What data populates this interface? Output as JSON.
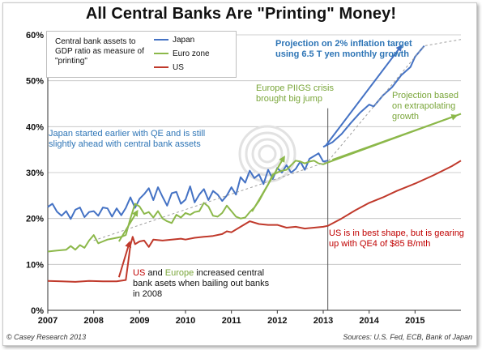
{
  "title": "All Central Banks Are \"Printing\" Money!",
  "legend_caption": "Central bank assets to GDP ratio as measure of \"printing\"",
  "annotations": {
    "japan_early": "Japan started earlier with QE and is still slightly ahead with central bank assets",
    "piigs": "Europe PIIGS crisis brought big jump",
    "projection_inflation": "Projection on 2% inflation target using 6.5 T yen monthly growth",
    "projection_extrapolating": "Projection based on extrapolating growth",
    "us_shape": "US is in best shape, but is  gearing up with QE4 of $85 B/mth",
    "bailout_us": "US",
    "bailout_and": " and ",
    "bailout_europe": "Europe",
    "bailout_rest": " increased central bank asets when bailing out banks in 2008"
  },
  "footer": {
    "left": "© Casey Research 2013",
    "right": "Sources:  U.S. Fed, ECB, Bank of Japan"
  },
  "colors": {
    "japan": "#4472c4",
    "euro": "#8cb84a",
    "us": "#c0392b",
    "japan_text": "#2e75b6",
    "euro_text": "#7aa63a",
    "us_text": "#c00000",
    "axis": "#333333",
    "grid": "#bfbfbf",
    "trend": "#9e9e9e"
  },
  "chart_data": {
    "type": "line",
    "xlim": [
      2007,
      2016
    ],
    "ylim": [
      0,
      60
    ],
    "x_ticks": [
      "2007",
      "2008",
      "2009",
      "2010",
      "2011",
      "2012",
      "2013",
      "2014",
      "2015"
    ],
    "y_ticks": [
      "0%",
      "10%",
      "20%",
      "30%",
      "40%",
      "50%",
      "60%"
    ],
    "grid": true,
    "vertical_marker_x": 2013.1,
    "series": [
      {
        "name": "Japan",
        "values": [
          [
            2007.0,
            22.5
          ],
          [
            2007.1,
            23.2
          ],
          [
            2007.2,
            21.5
          ],
          [
            2007.3,
            20.6
          ],
          [
            2007.4,
            21.6
          ],
          [
            2007.5,
            19.9
          ],
          [
            2007.6,
            21.9
          ],
          [
            2007.7,
            22.4
          ],
          [
            2007.8,
            20.3
          ],
          [
            2007.9,
            21.4
          ],
          [
            2008.0,
            21.6
          ],
          [
            2008.1,
            20.6
          ],
          [
            2008.2,
            22.4
          ],
          [
            2008.3,
            22.2
          ],
          [
            2008.4,
            20.4
          ],
          [
            2008.5,
            22.2
          ],
          [
            2008.6,
            20.7
          ],
          [
            2008.7,
            22.3
          ],
          [
            2008.8,
            24.6
          ],
          [
            2008.9,
            22.3
          ],
          [
            2009.0,
            24.3
          ],
          [
            2009.1,
            25.3
          ],
          [
            2009.2,
            26.6
          ],
          [
            2009.3,
            24.0
          ],
          [
            2009.4,
            26.8
          ],
          [
            2009.5,
            24.7
          ],
          [
            2009.6,
            22.8
          ],
          [
            2009.7,
            25.5
          ],
          [
            2009.8,
            25.8
          ],
          [
            2009.9,
            23.2
          ],
          [
            2010.0,
            24.1
          ],
          [
            2010.1,
            27.0
          ],
          [
            2010.2,
            23.5
          ],
          [
            2010.3,
            25.2
          ],
          [
            2010.4,
            26.4
          ],
          [
            2010.5,
            24.0
          ],
          [
            2010.6,
            26.0
          ],
          [
            2010.7,
            25.2
          ],
          [
            2010.8,
            23.8
          ],
          [
            2010.9,
            25.0
          ],
          [
            2011.0,
            26.8
          ],
          [
            2011.1,
            25.2
          ],
          [
            2011.2,
            29.0
          ],
          [
            2011.3,
            27.8
          ],
          [
            2011.4,
            30.4
          ],
          [
            2011.5,
            28.8
          ],
          [
            2011.6,
            29.6
          ],
          [
            2011.7,
            27.5
          ],
          [
            2011.8,
            30.6
          ],
          [
            2011.9,
            28.6
          ],
          [
            2012.0,
            31.0
          ],
          [
            2012.1,
            30.0
          ],
          [
            2012.2,
            31.6
          ],
          [
            2012.3,
            30.0
          ],
          [
            2012.4,
            30.8
          ],
          [
            2012.5,
            32.4
          ],
          [
            2012.6,
            30.6
          ],
          [
            2012.7,
            33.0
          ],
          [
            2012.8,
            33.6
          ],
          [
            2012.9,
            34.2
          ],
          [
            2013.0,
            32.4
          ],
          [
            2013.1,
            32.6
          ]
        ]
      },
      {
        "name": "Euro zone",
        "values": [
          [
            2007.0,
            12.8
          ],
          [
            2007.2,
            13.0
          ],
          [
            2007.4,
            13.2
          ],
          [
            2007.5,
            14.0
          ],
          [
            2007.6,
            13.2
          ],
          [
            2007.7,
            14.2
          ],
          [
            2007.8,
            13.6
          ],
          [
            2007.9,
            15.2
          ],
          [
            2008.0,
            16.4
          ],
          [
            2008.1,
            14.6
          ],
          [
            2008.2,
            15.0
          ],
          [
            2008.3,
            15.4
          ],
          [
            2008.4,
            15.6
          ],
          [
            2008.5,
            15.8
          ],
          [
            2008.6,
            16.0
          ],
          [
            2008.7,
            16.4
          ],
          [
            2008.8,
            20.0
          ],
          [
            2008.9,
            23.2
          ],
          [
            2009.0,
            22.6
          ],
          [
            2009.1,
            21.0
          ],
          [
            2009.2,
            21.4
          ],
          [
            2009.3,
            20.2
          ],
          [
            2009.4,
            21.6
          ],
          [
            2009.5,
            20.0
          ],
          [
            2009.6,
            19.4
          ],
          [
            2009.7,
            19.0
          ],
          [
            2009.8,
            20.8
          ],
          [
            2009.9,
            20.2
          ],
          [
            2010.0,
            21.2
          ],
          [
            2010.1,
            20.8
          ],
          [
            2010.2,
            21.4
          ],
          [
            2010.3,
            21.6
          ],
          [
            2010.4,
            23.4
          ],
          [
            2010.5,
            22.6
          ],
          [
            2010.6,
            20.6
          ],
          [
            2010.7,
            20.4
          ],
          [
            2010.8,
            21.2
          ],
          [
            2010.9,
            22.8
          ],
          [
            2011.0,
            21.6
          ],
          [
            2011.1,
            20.4
          ],
          [
            2011.2,
            20.0
          ],
          [
            2011.3,
            20.2
          ],
          [
            2011.4,
            21.4
          ],
          [
            2011.5,
            22.4
          ],
          [
            2011.6,
            23.8
          ],
          [
            2011.7,
            25.6
          ],
          [
            2011.8,
            27.4
          ],
          [
            2011.9,
            29.6
          ],
          [
            2012.0,
            30.0
          ],
          [
            2012.1,
            30.4
          ],
          [
            2012.2,
            30.6
          ],
          [
            2012.3,
            31.6
          ],
          [
            2012.4,
            32.6
          ],
          [
            2012.5,
            32.4
          ],
          [
            2012.6,
            32.0
          ],
          [
            2012.7,
            32.4
          ],
          [
            2012.8,
            32.6
          ],
          [
            2012.9,
            32.0
          ],
          [
            2013.0,
            31.8
          ],
          [
            2013.1,
            32.2
          ]
        ]
      },
      {
        "name": "US",
        "values": [
          [
            2007.0,
            6.4
          ],
          [
            2007.3,
            6.3
          ],
          [
            2007.6,
            6.2
          ],
          [
            2007.9,
            6.4
          ],
          [
            2008.2,
            6.3
          ],
          [
            2008.5,
            6.3
          ],
          [
            2008.7,
            6.6
          ],
          [
            2008.75,
            10.4
          ],
          [
            2008.8,
            14.2
          ],
          [
            2008.85,
            16.0
          ],
          [
            2008.9,
            14.4
          ],
          [
            2009.0,
            15.0
          ],
          [
            2009.1,
            15.2
          ],
          [
            2009.2,
            13.8
          ],
          [
            2009.3,
            15.4
          ],
          [
            2009.5,
            15.2
          ],
          [
            2009.7,
            15.4
          ],
          [
            2009.9,
            15.6
          ],
          [
            2010.0,
            15.4
          ],
          [
            2010.2,
            15.8
          ],
          [
            2010.4,
            16.0
          ],
          [
            2010.6,
            16.2
          ],
          [
            2010.8,
            16.6
          ],
          [
            2010.9,
            17.2
          ],
          [
            2011.0,
            17.0
          ],
          [
            2011.2,
            18.2
          ],
          [
            2011.4,
            19.4
          ],
          [
            2011.6,
            18.8
          ],
          [
            2011.8,
            18.6
          ],
          [
            2012.0,
            18.6
          ],
          [
            2012.2,
            18.0
          ],
          [
            2012.4,
            18.2
          ],
          [
            2012.6,
            17.8
          ],
          [
            2012.8,
            18.0
          ],
          [
            2013.0,
            18.2
          ],
          [
            2013.1,
            18.4
          ]
        ]
      },
      {
        "name": "Japan projection",
        "values": [
          [
            2013.0,
            35.6
          ],
          [
            2013.2,
            36.6
          ],
          [
            2013.4,
            38.4
          ],
          [
            2013.6,
            40.8
          ],
          [
            2013.8,
            43.0
          ],
          [
            2014.0,
            44.8
          ],
          [
            2014.1,
            44.4
          ],
          [
            2014.3,
            46.8
          ],
          [
            2014.5,
            48.6
          ],
          [
            2014.7,
            51.2
          ],
          [
            2014.9,
            53.0
          ],
          [
            2015.0,
            55.2
          ],
          [
            2015.2,
            57.6
          ]
        ]
      },
      {
        "name": "Euro zone projection",
        "values": [
          [
            2013.1,
            32.2
          ],
          [
            2016.0,
            42.8
          ]
        ]
      },
      {
        "name": "US projection",
        "values": [
          [
            2013.1,
            18.4
          ],
          [
            2013.4,
            20.0
          ],
          [
            2013.7,
            21.8
          ],
          [
            2014.0,
            23.4
          ],
          [
            2014.3,
            24.6
          ],
          [
            2014.6,
            26.0
          ],
          [
            2015.0,
            27.6
          ],
          [
            2015.4,
            29.4
          ],
          [
            2015.8,
            31.4
          ],
          [
            2016.0,
            32.6
          ]
        ]
      },
      {
        "name": "Trend",
        "values": [
          [
            2008.0,
            15.2
          ],
          [
            2013.1,
            32.4
          ],
          [
            2015.2,
            57.6
          ],
          [
            2016.0,
            59.0
          ]
        ]
      }
    ],
    "arrows": [
      {
        "name": "us-jump-arrow",
        "from": [
          2008.55,
          7.2
        ],
        "to": [
          2008.78,
          14.8
        ],
        "color": "us"
      },
      {
        "name": "euro-jump-arrow",
        "from": [
          2008.55,
          15.0
        ],
        "to": [
          2008.95,
          21.6
        ],
        "color": "euro"
      },
      {
        "name": "piigs-arrow",
        "from": [
          2011.45,
          21.5
        ],
        "to": [
          2012.15,
          33.4
        ],
        "color": "euro"
      },
      {
        "name": "japan-projection-arrow",
        "from": [
          2013.05,
          35.8
        ],
        "to": [
          2014.7,
          57.6
        ],
        "color": "japan"
      },
      {
        "name": "euro-projection-arrow",
        "from": [
          2013.2,
          32.8
        ],
        "to": [
          2015.9,
          42.4
        ],
        "color": "euro"
      }
    ]
  }
}
